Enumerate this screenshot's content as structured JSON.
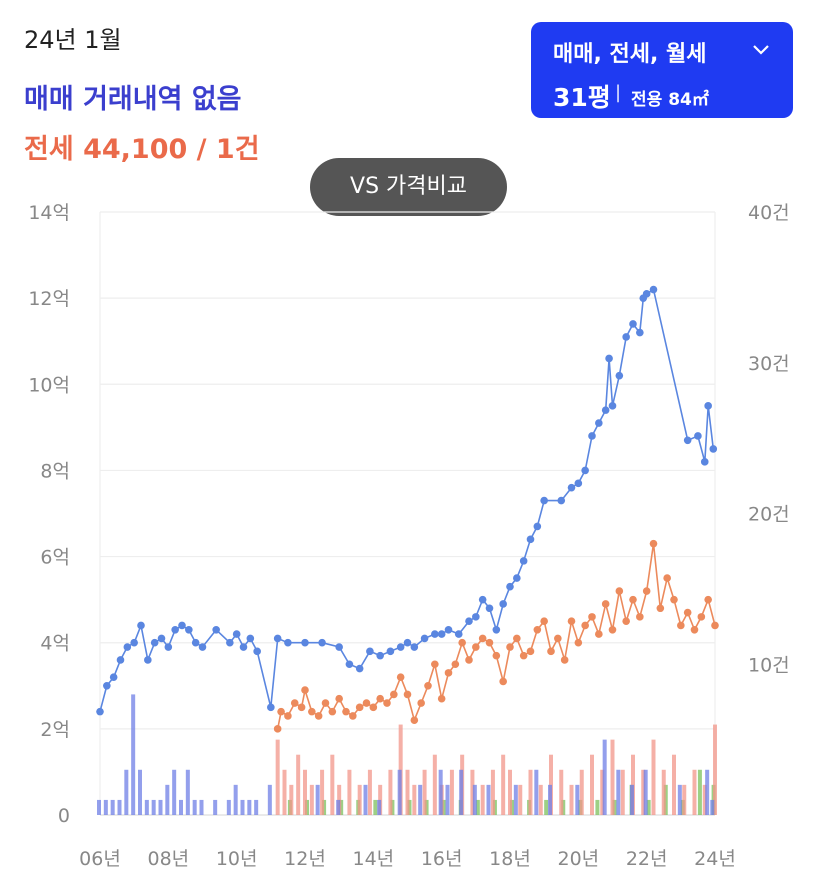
{
  "header": {
    "date": "24년 1월",
    "sale_status": "매매 거래내역 없음",
    "jeonse_info": "전세 44,100 / 1건"
  },
  "filter": {
    "type_label": "매매, 전세, 월세",
    "size_label": "31평",
    "separator": "|",
    "area_label": "전용 84㎡",
    "chevron_icon": "chevron-down-icon"
  },
  "compare_button": {
    "label": "VS 가격비교"
  },
  "colors": {
    "sale": "#5a86e0",
    "jeonse": "#ec8a5c",
    "vol_sale": "#6f7fe6",
    "vol_jeonse": "#f1968a",
    "vol_monthly": "#7cc05c",
    "filter_bg": "#1f3bf2"
  },
  "chart_data": {
    "type": "line",
    "x_ticks": [
      "06년",
      "08년",
      "10년",
      "12년",
      "14년",
      "16년",
      "18년",
      "20년",
      "22년",
      "24년"
    ],
    "y_left": {
      "ticks": [
        "0",
        "2억",
        "4억",
        "6억",
        "8억",
        "10억",
        "12억",
        "14억"
      ],
      "range": [
        0,
        14
      ],
      "unit": "억"
    },
    "y_right": {
      "ticks": [
        "",
        "10건",
        "20건",
        "30건",
        "40건"
      ],
      "range": [
        0,
        40
      ],
      "unit": "건"
    },
    "grid": true,
    "series": [
      {
        "kind": "price",
        "points": [
          [
            2006.0,
            2.4
          ],
          [
            2006.2,
            3.0
          ],
          [
            2006.4,
            3.2
          ],
          [
            2006.6,
            3.6
          ],
          [
            2006.8,
            3.9
          ],
          [
            2007.0,
            4.0
          ],
          [
            2007.2,
            4.4
          ],
          [
            2007.4,
            3.6
          ],
          [
            2007.6,
            4.0
          ],
          [
            2007.8,
            4.1
          ],
          [
            2008.0,
            3.9
          ],
          [
            2008.2,
            4.3
          ],
          [
            2008.4,
            4.4
          ],
          [
            2008.6,
            4.3
          ],
          [
            2008.8,
            4.0
          ],
          [
            2009.0,
            3.9
          ],
          [
            2009.4,
            4.3
          ],
          [
            2009.8,
            4.0
          ],
          [
            2010.0,
            4.2
          ],
          [
            2010.2,
            3.9
          ],
          [
            2010.4,
            4.1
          ],
          [
            2010.6,
            3.8
          ],
          [
            2011.0,
            2.5
          ],
          [
            2011.2,
            4.1
          ],
          [
            2011.5,
            4.0
          ],
          [
            2012.0,
            4.0
          ],
          [
            2012.5,
            4.0
          ],
          [
            2013.0,
            3.9
          ],
          [
            2013.3,
            3.5
          ],
          [
            2013.6,
            3.4
          ],
          [
            2013.9,
            3.8
          ],
          [
            2014.2,
            3.7
          ],
          [
            2014.5,
            3.8
          ],
          [
            2014.8,
            3.9
          ],
          [
            2015.0,
            4.0
          ],
          [
            2015.2,
            3.9
          ],
          [
            2015.5,
            4.1
          ],
          [
            2015.8,
            4.2
          ],
          [
            2016.0,
            4.2
          ],
          [
            2016.2,
            4.3
          ],
          [
            2016.5,
            4.2
          ],
          [
            2016.8,
            4.5
          ],
          [
            2017.0,
            4.6
          ],
          [
            2017.2,
            5.0
          ],
          [
            2017.4,
            4.8
          ],
          [
            2017.6,
            4.3
          ],
          [
            2017.8,
            4.9
          ],
          [
            2018.0,
            5.3
          ],
          [
            2018.2,
            5.5
          ],
          [
            2018.4,
            5.9
          ],
          [
            2018.6,
            6.4
          ],
          [
            2018.8,
            6.7
          ],
          [
            2019.0,
            7.3
          ],
          [
            2019.5,
            7.3
          ],
          [
            2019.8,
            7.6
          ],
          [
            2020.0,
            7.7
          ],
          [
            2020.2,
            8.0
          ],
          [
            2020.4,
            8.8
          ],
          [
            2020.6,
            9.1
          ],
          [
            2020.8,
            9.4
          ],
          [
            2020.9,
            10.6
          ],
          [
            2021.0,
            9.5
          ],
          [
            2021.2,
            10.2
          ],
          [
            2021.4,
            11.1
          ],
          [
            2021.6,
            11.4
          ],
          [
            2021.8,
            11.2
          ],
          [
            2021.9,
            12.0
          ],
          [
            2022.0,
            12.1
          ],
          [
            2022.2,
            12.2
          ],
          [
            2023.2,
            8.7
          ],
          [
            2023.5,
            8.8
          ],
          [
            2023.7,
            8.2
          ],
          [
            2023.8,
            9.5
          ],
          [
            2023.95,
            8.5
          ]
        ]
      },
      {
        "kind": "jeonse",
        "points": [
          [
            2011.2,
            2.0
          ],
          [
            2011.3,
            2.4
          ],
          [
            2011.5,
            2.3
          ],
          [
            2011.7,
            2.6
          ],
          [
            2011.9,
            2.5
          ],
          [
            2012.0,
            2.9
          ],
          [
            2012.2,
            2.4
          ],
          [
            2012.4,
            2.3
          ],
          [
            2012.6,
            2.6
          ],
          [
            2012.8,
            2.4
          ],
          [
            2013.0,
            2.7
          ],
          [
            2013.2,
            2.4
          ],
          [
            2013.4,
            2.3
          ],
          [
            2013.6,
            2.5
          ],
          [
            2013.8,
            2.6
          ],
          [
            2014.0,
            2.5
          ],
          [
            2014.2,
            2.7
          ],
          [
            2014.4,
            2.6
          ],
          [
            2014.6,
            2.8
          ],
          [
            2014.8,
            3.2
          ],
          [
            2015.0,
            2.8
          ],
          [
            2015.2,
            2.2
          ],
          [
            2015.4,
            2.6
          ],
          [
            2015.6,
            3.0
          ],
          [
            2015.8,
            3.5
          ],
          [
            2016.0,
            2.7
          ],
          [
            2016.2,
            3.3
          ],
          [
            2016.4,
            3.5
          ],
          [
            2016.6,
            4.0
          ],
          [
            2016.8,
            3.6
          ],
          [
            2017.0,
            3.9
          ],
          [
            2017.2,
            4.1
          ],
          [
            2017.4,
            4.0
          ],
          [
            2017.6,
            3.7
          ],
          [
            2017.8,
            3.1
          ],
          [
            2018.0,
            3.9
          ],
          [
            2018.2,
            4.1
          ],
          [
            2018.4,
            3.7
          ],
          [
            2018.6,
            3.8
          ],
          [
            2018.8,
            4.3
          ],
          [
            2019.0,
            4.5
          ],
          [
            2019.2,
            3.8
          ],
          [
            2019.4,
            4.1
          ],
          [
            2019.6,
            3.6
          ],
          [
            2019.8,
            4.5
          ],
          [
            2020.0,
            4.0
          ],
          [
            2020.2,
            4.4
          ],
          [
            2020.4,
            4.6
          ],
          [
            2020.6,
            4.2
          ],
          [
            2020.8,
            4.9
          ],
          [
            2021.0,
            4.3
          ],
          [
            2021.2,
            5.2
          ],
          [
            2021.4,
            4.5
          ],
          [
            2021.6,
            5.0
          ],
          [
            2021.8,
            4.6
          ],
          [
            2022.0,
            5.2
          ],
          [
            2022.2,
            6.3
          ],
          [
            2022.4,
            4.8
          ],
          [
            2022.6,
            5.5
          ],
          [
            2022.8,
            5.0
          ],
          [
            2023.0,
            4.4
          ],
          [
            2023.2,
            4.7
          ],
          [
            2023.4,
            4.3
          ],
          [
            2023.6,
            4.6
          ],
          [
            2023.8,
            5.0
          ],
          [
            2024.0,
            4.4
          ]
        ]
      }
    ],
    "volume": {
      "sale": [
        [
          2006.0,
          1
        ],
        [
          2006.2,
          1
        ],
        [
          2006.4,
          1
        ],
        [
          2006.6,
          1
        ],
        [
          2006.8,
          3
        ],
        [
          2007.0,
          8
        ],
        [
          2007.2,
          3
        ],
        [
          2007.4,
          1
        ],
        [
          2007.6,
          1
        ],
        [
          2007.8,
          1
        ],
        [
          2008.0,
          2
        ],
        [
          2008.2,
          3
        ],
        [
          2008.4,
          1
        ],
        [
          2008.6,
          3
        ],
        [
          2008.8,
          1
        ],
        [
          2009.0,
          1
        ],
        [
          2009.4,
          1
        ],
        [
          2009.8,
          1
        ],
        [
          2010.0,
          2
        ],
        [
          2010.2,
          1
        ],
        [
          2010.4,
          1
        ],
        [
          2010.6,
          1
        ],
        [
          2011.0,
          2
        ],
        [
          2012.4,
          2
        ],
        [
          2013.0,
          1
        ],
        [
          2013.8,
          2
        ],
        [
          2014.2,
          1
        ],
        [
          2014.8,
          3
        ],
        [
          2015.4,
          2
        ],
        [
          2016.0,
          3
        ],
        [
          2016.2,
          2
        ],
        [
          2016.6,
          3
        ],
        [
          2017.0,
          2
        ],
        [
          2017.4,
          2
        ],
        [
          2018.2,
          2
        ],
        [
          2018.8,
          3
        ],
        [
          2019.2,
          2
        ],
        [
          2020.0,
          2
        ],
        [
          2020.8,
          5
        ],
        [
          2021.2,
          3
        ],
        [
          2021.6,
          2
        ],
        [
          2022.0,
          3
        ],
        [
          2023.0,
          2
        ],
        [
          2023.8,
          3
        ],
        [
          2023.95,
          1
        ]
      ],
      "jeonse": [
        [
          2011.2,
          5
        ],
        [
          2011.4,
          3
        ],
        [
          2011.6,
          2
        ],
        [
          2011.8,
          4
        ],
        [
          2012.0,
          3
        ],
        [
          2012.2,
          2
        ],
        [
          2012.5,
          3
        ],
        [
          2012.8,
          4
        ],
        [
          2013.0,
          2
        ],
        [
          2013.3,
          3
        ],
        [
          2013.6,
          2
        ],
        [
          2013.9,
          3
        ],
        [
          2014.2,
          2
        ],
        [
          2014.5,
          3
        ],
        [
          2014.8,
          6
        ],
        [
          2015.0,
          3
        ],
        [
          2015.2,
          2
        ],
        [
          2015.5,
          3
        ],
        [
          2015.8,
          4
        ],
        [
          2016.0,
          2
        ],
        [
          2016.3,
          3
        ],
        [
          2016.6,
          4
        ],
        [
          2016.9,
          3
        ],
        [
          2017.2,
          2
        ],
        [
          2017.5,
          3
        ],
        [
          2017.8,
          4
        ],
        [
          2018.0,
          3
        ],
        [
          2018.3,
          2
        ],
        [
          2018.6,
          3
        ],
        [
          2018.9,
          2
        ],
        [
          2019.2,
          4
        ],
        [
          2019.5,
          3
        ],
        [
          2019.8,
          2
        ],
        [
          2020.1,
          3
        ],
        [
          2020.4,
          4
        ],
        [
          2020.7,
          3
        ],
        [
          2021.0,
          5
        ],
        [
          2021.3,
          3
        ],
        [
          2021.6,
          4
        ],
        [
          2021.9,
          3
        ],
        [
          2022.2,
          5
        ],
        [
          2022.5,
          3
        ],
        [
          2022.8,
          4
        ],
        [
          2023.1,
          2
        ],
        [
          2023.4,
          3
        ],
        [
          2023.7,
          2
        ],
        [
          2024.0,
          6
        ]
      ],
      "monthly": [
        [
          2011.5,
          1
        ],
        [
          2012.0,
          1
        ],
        [
          2012.5,
          1
        ],
        [
          2013.0,
          1
        ],
        [
          2013.5,
          1
        ],
        [
          2014.0,
          1
        ],
        [
          2014.5,
          1
        ],
        [
          2015.0,
          1
        ],
        [
          2015.5,
          1
        ],
        [
          2016.0,
          1
        ],
        [
          2016.5,
          1
        ],
        [
          2017.0,
          1
        ],
        [
          2017.5,
          1
        ],
        [
          2018.0,
          1
        ],
        [
          2018.5,
          1
        ],
        [
          2019.0,
          1
        ],
        [
          2019.5,
          1
        ],
        [
          2020.0,
          1
        ],
        [
          2020.5,
          1
        ],
        [
          2021.0,
          1
        ],
        [
          2021.5,
          2
        ],
        [
          2022.0,
          1
        ],
        [
          2022.5,
          2
        ],
        [
          2023.0,
          1
        ],
        [
          2023.5,
          3
        ],
        [
          2023.9,
          2
        ]
      ]
    }
  }
}
